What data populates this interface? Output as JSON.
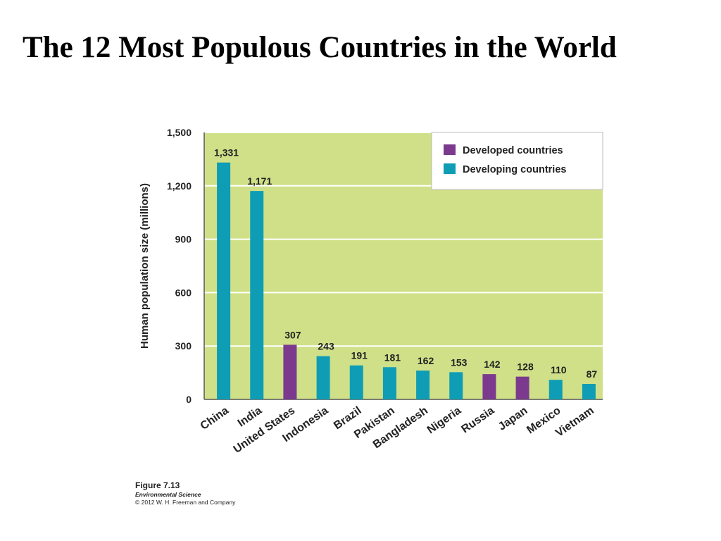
{
  "title": "The 12 Most Populous Countries in the World",
  "chart_data": {
    "type": "bar",
    "categories": [
      "China",
      "India",
      "United States",
      "Indonesia",
      "Brazil",
      "Pakistan",
      "Bangladesh",
      "Nigeria",
      "Russia",
      "Japan",
      "Mexico",
      "Vietnam"
    ],
    "values": [
      1331,
      1171,
      307,
      243,
      191,
      181,
      162,
      153,
      142,
      128,
      110,
      87
    ],
    "value_labels": [
      "1,331",
      "1,171",
      "307",
      "243",
      "191",
      "181",
      "162",
      "153",
      "142",
      "128",
      "110",
      "87"
    ],
    "groups": [
      "developing",
      "developing",
      "developed",
      "developing",
      "developing",
      "developing",
      "developing",
      "developing",
      "developed",
      "developed",
      "developing",
      "developing"
    ],
    "ylabel": "Human population size (millions)",
    "xlabel": "",
    "ylim": [
      0,
      1500
    ],
    "yticks": [
      0,
      300,
      600,
      900,
      1200,
      1500
    ],
    "ytick_labels": [
      "0",
      "300",
      "600",
      "900",
      "1,200",
      "1,500"
    ],
    "legend": [
      {
        "key": "developed",
        "label": "Developed countries",
        "color": "#7b3a8e"
      },
      {
        "key": "developing",
        "label": "Developing countries",
        "color": "#0e9db5"
      }
    ],
    "legend_position": "top-right",
    "grid": true,
    "background_color": "#cfe088"
  },
  "caption": {
    "figure": "Figure 7.13",
    "book": "Environmental Science",
    "copyright": "© 2012 W. H. Freeman and Company"
  }
}
